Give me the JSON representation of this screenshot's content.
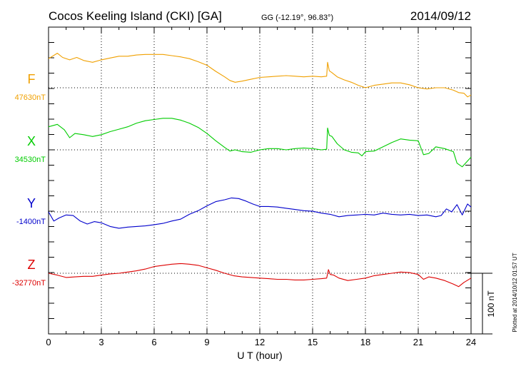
{
  "header": {
    "station": "Cocos Keeling Island (CKI)  [GA]",
    "coords": "GG (-12.19°,  96.83°)",
    "date": "2014/09/12"
  },
  "plotted_note": "Plotted at 2014/10/12 01:57 UT",
  "chart_data": {
    "type": "line",
    "xlabel": "U T (hour)",
    "xlim": [
      0,
      24
    ],
    "x_ticks": [
      "0",
      "3",
      "6",
      "9",
      "12",
      "15",
      "18",
      "21",
      "24"
    ],
    "scale_bar_label": "100 nT",
    "scale_bar_nT": 100,
    "series": [
      {
        "name": "F",
        "baseline_label": "47630nT",
        "baseline_nT": 47630,
        "color": "#f0a000",
        "x": [
          0,
          0.5,
          0.8,
          1.2,
          1.6,
          2.0,
          2.5,
          3.0,
          3.5,
          4.0,
          4.5,
          5.0,
          5.5,
          6.0,
          6.5,
          7.0,
          7.5,
          8.0,
          8.5,
          9.0,
          9.5,
          10.0,
          10.3,
          10.6,
          11.0,
          11.5,
          12.0,
          12.5,
          13.0,
          13.5,
          14.0,
          14.5,
          15.0,
          15.5,
          15.8,
          15.85,
          15.95,
          16.1,
          16.4,
          16.8,
          17.2,
          17.6,
          18.0,
          18.5,
          19.0,
          19.5,
          20.0,
          20.5,
          21.0,
          21.5,
          22.0,
          22.5,
          23.0,
          23.3,
          23.6,
          23.8,
          24.0
        ],
        "values": [
          48,
          57,
          50,
          46,
          50,
          45,
          42,
          46,
          49,
          52,
          52,
          54,
          55,
          55,
          55,
          53,
          51,
          48,
          43,
          37,
          27,
          18,
          12,
          9,
          11,
          14,
          17,
          18,
          19,
          20,
          19,
          18,
          19,
          18,
          19,
          42,
          28,
          25,
          18,
          13,
          9,
          4,
          0,
          4,
          6,
          8,
          8,
          5,
          0,
          -2,
          0,
          0,
          -4,
          -8,
          -9,
          -15,
          -12
        ]
      },
      {
        "name": "X",
        "baseline_label": "34530nT",
        "baseline_nT": 34530,
        "color": "#00cc00",
        "x": [
          0,
          0.5,
          0.9,
          1.2,
          1.5,
          2.0,
          2.5,
          3.0,
          3.5,
          4.0,
          4.5,
          5.0,
          5.5,
          6.0,
          6.5,
          7.0,
          7.5,
          8.0,
          8.5,
          9.0,
          9.5,
          10.0,
          10.3,
          10.6,
          11.0,
          11.5,
          12.0,
          12.5,
          13.0,
          13.5,
          14.0,
          14.5,
          15.0,
          15.5,
          15.8,
          15.85,
          15.95,
          16.1,
          16.4,
          16.8,
          17.2,
          17.6,
          17.8,
          18.0,
          18.5,
          19.0,
          19.5,
          20.0,
          20.5,
          21.0,
          21.3,
          21.6,
          22.0,
          22.5,
          23.0,
          23.2,
          23.5,
          24.0
        ],
        "values": [
          38,
          42,
          33,
          20,
          27,
          25,
          22,
          25,
          30,
          34,
          38,
          44,
          48,
          50,
          52,
          52,
          49,
          44,
          37,
          27,
          15,
          4,
          -2,
          0,
          -3,
          -4,
          0,
          2,
          2,
          0,
          2,
          3,
          2,
          0,
          1,
          36,
          24,
          22,
          10,
          0,
          -4,
          -5,
          -10,
          -3,
          -2,
          5,
          12,
          18,
          16,
          15,
          -8,
          -6,
          5,
          2,
          -3,
          -22,
          -28,
          -12
        ]
      },
      {
        "name": "Y",
        "baseline_label": "-1400nT",
        "baseline_nT": -1400,
        "color": "#0000cc",
        "x": [
          0,
          0.3,
          0.6,
          1.0,
          1.4,
          1.8,
          2.2,
          2.6,
          3.0,
          3.5,
          4.0,
          4.5,
          5.0,
          5.5,
          6.0,
          6.5,
          7.0,
          7.5,
          8.0,
          8.5,
          9.0,
          9.5,
          10.0,
          10.4,
          10.8,
          11.2,
          11.6,
          12.0,
          12.5,
          13.0,
          13.5,
          14.0,
          14.5,
          15.0,
          15.5,
          16.0,
          16.5,
          17.0,
          17.5,
          18.0,
          18.5,
          19.0,
          19.5,
          20.0,
          20.5,
          21.0,
          21.5,
          22.0,
          22.3,
          22.6,
          22.9,
          23.2,
          23.5,
          23.8,
          24.0
        ],
        "values": [
          0,
          -15,
          -10,
          -5,
          -6,
          -15,
          -20,
          -16,
          -18,
          -24,
          -27,
          -25,
          -24,
          -23,
          -21,
          -19,
          -15,
          -12,
          -4,
          2,
          10,
          17,
          20,
          23,
          22,
          18,
          13,
          9,
          9,
          8,
          6,
          4,
          2,
          1,
          -2,
          -4,
          -8,
          -6,
          -5,
          -4,
          -5,
          -2,
          -4,
          -5,
          -4,
          -6,
          -5,
          -8,
          -6,
          5,
          0,
          12,
          -5,
          13,
          8
        ]
      },
      {
        "name": "Z",
        "baseline_label": "-32770nT",
        "baseline_nT": -32770,
        "color": "#dd0000",
        "x": [
          0,
          0.5,
          1.0,
          1.5,
          2.0,
          2.5,
          3.0,
          3.5,
          4.0,
          4.5,
          5.0,
          5.5,
          6.0,
          6.5,
          7.0,
          7.5,
          8.0,
          8.5,
          9.0,
          9.5,
          10.0,
          10.5,
          11.0,
          11.5,
          12.0,
          12.5,
          13.0,
          13.5,
          14.0,
          14.5,
          15.0,
          15.5,
          15.8,
          15.9,
          16.0,
          16.2,
          16.5,
          17.0,
          17.5,
          18.0,
          18.5,
          19.0,
          19.5,
          20.0,
          20.5,
          21.0,
          21.3,
          21.6,
          22.0,
          22.5,
          23.0,
          23.3,
          23.6,
          24.0
        ],
        "values": [
          0,
          -3,
          -7,
          -6,
          -5,
          -5,
          -3,
          -1,
          0,
          2,
          4,
          7,
          11,
          13,
          15,
          16,
          15,
          13,
          9,
          5,
          0,
          -4,
          -6,
          -7,
          -8,
          -9,
          -10,
          -10,
          -11,
          -11,
          -10,
          -9,
          -8,
          6,
          -2,
          -3,
          -8,
          -12,
          -10,
          -8,
          -4,
          -2,
          0,
          2,
          1,
          -2,
          -10,
          -6,
          -8,
          -12,
          -18,
          -22,
          -15,
          -8
        ]
      }
    ]
  }
}
